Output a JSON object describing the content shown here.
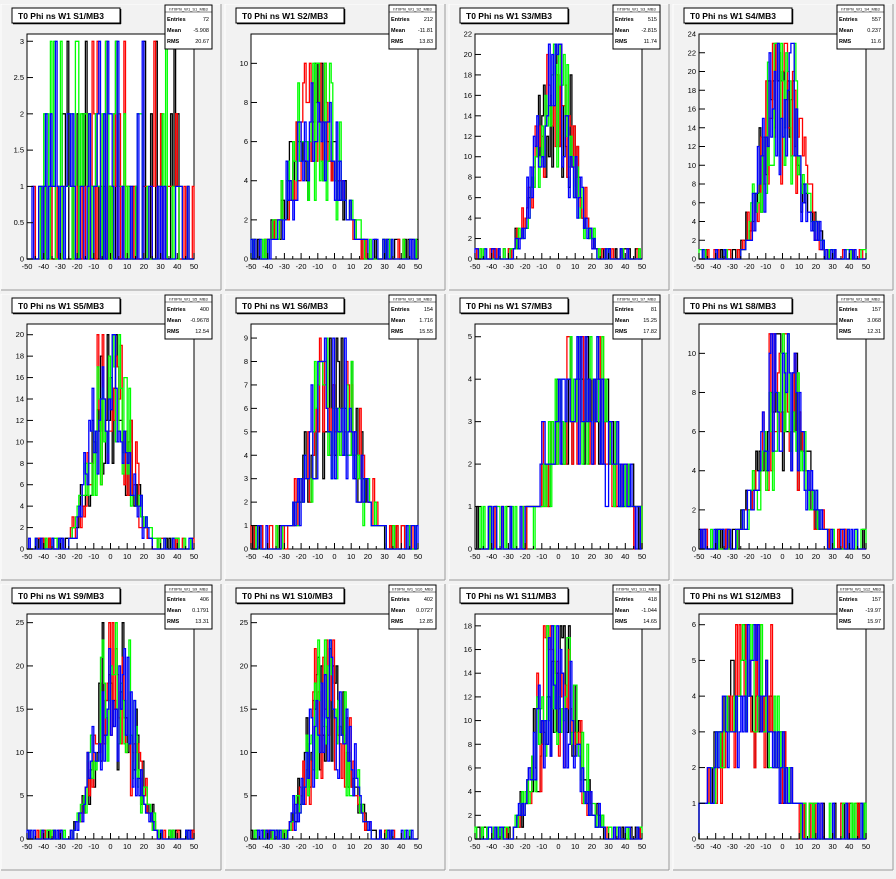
{
  "colors": {
    "black": "#000000",
    "red": "#ff0000",
    "green": "#00ff00",
    "blue": "#0000ff"
  },
  "stat_labels": [
    "Entries",
    "Mean",
    "RMS"
  ],
  "chart_data": [
    {
      "type": "histogram",
      "title": "T0 Phi ns W1 S1/MB3",
      "hist_name": "hT0Phi_W1_S1_MB3",
      "entries": "72",
      "mean": "-5.908",
      "rms": "20.67",
      "xlim": [
        -50,
        50
      ],
      "xticks": [
        -50,
        -40,
        -30,
        -20,
        -10,
        0,
        10,
        20,
        30,
        40,
        50
      ],
      "ylim": [
        0,
        3.1
      ],
      "yticks": [
        0,
        0.5,
        1,
        1.5,
        2,
        2.5,
        3
      ],
      "spread": "flat",
      "seed": 11
    },
    {
      "type": "histogram",
      "title": "T0 Phi ns W1 S2/MB3",
      "hist_name": "hT0Phi_W1_S2_MB3",
      "entries": "212",
      "mean": "-11.81",
      "rms": "13.83",
      "xlim": [
        -50,
        50
      ],
      "xticks": [
        -50,
        -40,
        -30,
        -20,
        -10,
        0,
        10,
        20,
        30,
        40,
        50
      ],
      "ylim": [
        0,
        11.5
      ],
      "yticks": [
        0,
        2,
        4,
        6,
        8,
        10
      ],
      "peak": 10.5,
      "center": -11,
      "sigma": 13,
      "seed": 22
    },
    {
      "type": "histogram",
      "title": "T0 Phi ns W1 S3/MB3",
      "hist_name": "hT0Phi_W1_S3_MB3",
      "entries": "515",
      "mean": "-2.815",
      "rms": "11.74",
      "xlim": [
        -50,
        50
      ],
      "xticks": [
        -50,
        -40,
        -30,
        -20,
        -10,
        0,
        10,
        20,
        30,
        40,
        50
      ],
      "ylim": [
        0,
        22
      ],
      "yticks": [
        0,
        2,
        4,
        6,
        8,
        10,
        12,
        14,
        16,
        18,
        20,
        22
      ],
      "peak": 21.5,
      "center": -2,
      "sigma": 11,
      "seed": 33
    },
    {
      "type": "histogram",
      "title": "T0 Phi ns W1 S4/MB3",
      "hist_name": "hT0Phi_W1_S4_MB3",
      "entries": "557",
      "mean": "0.237",
      "rms": "11.6",
      "xlim": [
        -50,
        50
      ],
      "xticks": [
        -50,
        -40,
        -30,
        -20,
        -10,
        0,
        10,
        20,
        30,
        40,
        50
      ],
      "ylim": [
        0,
        24
      ],
      "yticks": [
        0,
        2,
        4,
        6,
        8,
        10,
        12,
        14,
        16,
        18,
        20,
        22,
        24
      ],
      "peak": 23.5,
      "center": 0,
      "sigma": 11,
      "seed": 44
    },
    {
      "type": "histogram",
      "title": "T0 Phi ns W1 S5/MB3",
      "hist_name": "hT0Phi_W1_S5_MB3",
      "entries": "400",
      "mean": "-0.9678",
      "rms": "12.54",
      "xlim": [
        -50,
        50
      ],
      "xticks": [
        -50,
        -40,
        -30,
        -20,
        -10,
        0,
        10,
        20,
        30,
        40,
        50
      ],
      "ylim": [
        0,
        21
      ],
      "yticks": [
        0,
        2,
        4,
        6,
        8,
        10,
        12,
        14,
        16,
        18,
        20
      ],
      "peak": 20,
      "center": 0,
      "sigma": 11,
      "seed": 55
    },
    {
      "type": "histogram",
      "title": "T0 Phi ns W1 S6/MB3",
      "hist_name": "hT0Phi_W1_S6_MB3",
      "entries": "154",
      "mean": "1.716",
      "rms": "15.55",
      "xlim": [
        -50,
        50
      ],
      "xticks": [
        -50,
        -40,
        -30,
        -20,
        -10,
        0,
        10,
        20,
        30,
        40,
        50
      ],
      "ylim": [
        0,
        9.6
      ],
      "yticks": [
        0,
        1,
        2,
        3,
        4,
        5,
        6,
        7,
        8,
        9
      ],
      "peak": 9,
      "center": 0,
      "sigma": 14,
      "seed": 66
    },
    {
      "type": "histogram",
      "title": "T0 Phi ns W1 S7/MB3",
      "hist_name": "hT0Phi_W1_S7_MB3",
      "entries": "81",
      "mean": "15.25",
      "rms": "17.82",
      "xlim": [
        -50,
        50
      ],
      "xticks": [
        -50,
        -40,
        -30,
        -20,
        -10,
        0,
        10,
        20,
        30,
        40,
        50
      ],
      "ylim": [
        0,
        5.3
      ],
      "yticks": [
        0,
        1,
        2,
        3,
        4,
        5
      ],
      "peak": 5,
      "center": 15,
      "sigma": 18,
      "seed": 77
    },
    {
      "type": "histogram",
      "title": "T0 Phi ns W1 S8/MB3",
      "hist_name": "hT0Phi_W1_S8_MB3",
      "entries": "157",
      "mean": "3.068",
      "rms": "12.31",
      "xlim": [
        -50,
        50
      ],
      "xticks": [
        -50,
        -40,
        -30,
        -20,
        -10,
        0,
        10,
        20,
        30,
        40,
        50
      ],
      "ylim": [
        0,
        11.5
      ],
      "yticks": [
        0,
        2,
        4,
        6,
        8,
        10
      ],
      "peak": 11,
      "center": 0,
      "sigma": 12,
      "seed": 88
    },
    {
      "type": "histogram",
      "title": "T0 Phi ns W1 S9/MB3",
      "hist_name": "hT0Phi_W1_S9_MB3",
      "entries": "406",
      "mean": "0.1791",
      "rms": "13.31",
      "xlim": [
        -50,
        50
      ],
      "xticks": [
        -50,
        -40,
        -30,
        -20,
        -10,
        0,
        10,
        20,
        30,
        40,
        50
      ],
      "ylim": [
        0,
        26
      ],
      "yticks": [
        0,
        5,
        10,
        15,
        20,
        25
      ],
      "peak": 25,
      "center": 3,
      "sigma": 11,
      "seed": 99
    },
    {
      "type": "histogram",
      "title": "T0 Phi ns W1 S10/MB3",
      "hist_name": "hT0Phi_W1_S10_MB3",
      "entries": "402",
      "mean": "0.0727",
      "rms": "12.85",
      "xlim": [
        -50,
        50
      ],
      "xticks": [
        -50,
        -40,
        -30,
        -20,
        -10,
        0,
        10,
        20,
        30,
        40,
        50
      ],
      "ylim": [
        0,
        26
      ],
      "yticks": [
        0,
        5,
        10,
        15,
        20,
        25
      ],
      "peak": 23,
      "center": -3,
      "sigma": 11,
      "seed": 110
    },
    {
      "type": "histogram",
      "title": "T0 Phi ns W1 S11/MB3",
      "hist_name": "hT0Phi_W1_S11_MB3",
      "entries": "418",
      "mean": "-1.044",
      "rms": "14.65",
      "xlim": [
        -50,
        50
      ],
      "xticks": [
        -50,
        -40,
        -30,
        -20,
        -10,
        0,
        10,
        20,
        30,
        40,
        50
      ],
      "ylim": [
        0,
        19
      ],
      "yticks": [
        0,
        2,
        4,
        6,
        8,
        10,
        12,
        14,
        16,
        18
      ],
      "peak": 18.5,
      "center": 0,
      "sigma": 12,
      "seed": 121
    },
    {
      "type": "histogram",
      "title": "T0 Phi ns W1 S12/MB3",
      "hist_name": "hT0Phi_W1_S12_MB3",
      "entries": "157",
      "mean": "-19.97",
      "rms": "15.97",
      "xlim": [
        -50,
        50
      ],
      "xticks": [
        -50,
        -40,
        -30,
        -20,
        -10,
        0,
        10,
        20,
        30,
        40,
        50
      ],
      "ylim": [
        0,
        6.3
      ],
      "yticks": [
        0,
        1,
        2,
        3,
        4,
        5,
        6
      ],
      "peak": 6,
      "center": -20,
      "sigma": 16,
      "seed": 132
    }
  ]
}
